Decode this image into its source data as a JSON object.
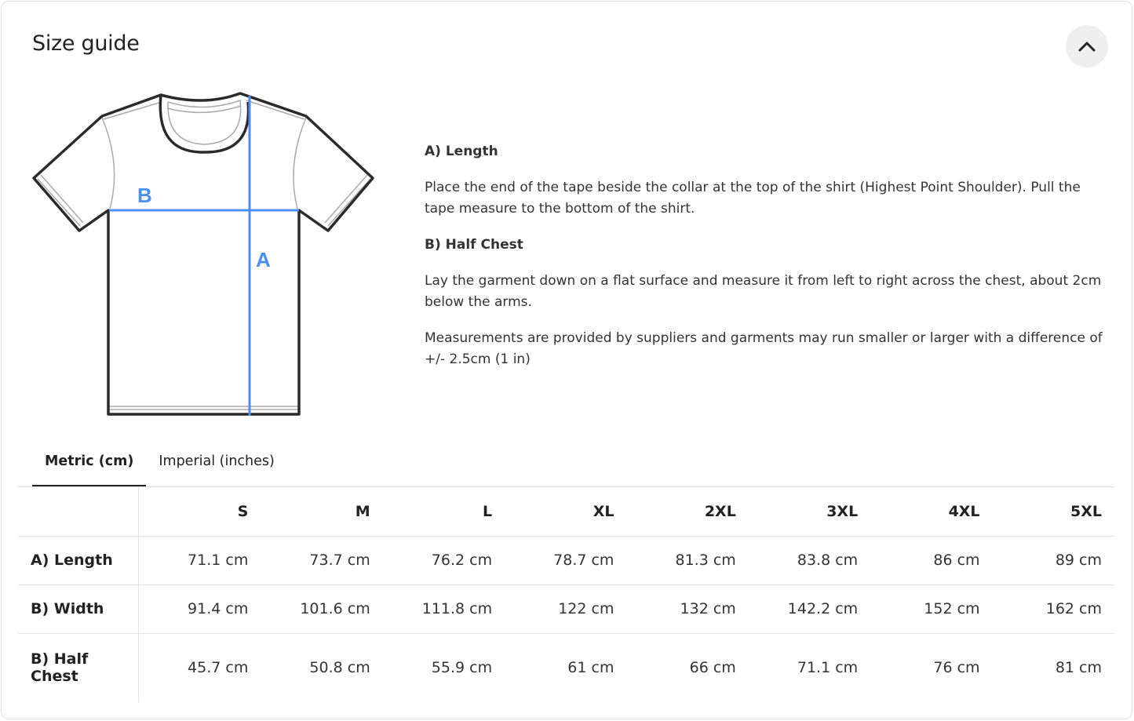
{
  "title": "Size guide",
  "icons": {
    "collapse": "chevron-up-icon"
  },
  "colors": {
    "measure_line": "#4a8ff0"
  },
  "diagram": {
    "label_a": "A",
    "label_b": "B"
  },
  "description": {
    "length_heading": "A) Length",
    "length_text": "Place the end of the tape beside the collar at the top of the shirt (Highest Point Shoulder). Pull the tape measure to the bottom of the shirt.",
    "chest_heading": "B) Half Chest",
    "chest_text": "Lay the garment down on a flat surface and measure it from left to right across the chest, about 2cm below the arms.",
    "note": "Measurements are provided by suppliers and garments may run smaller or larger with a difference of +/- 2.5cm (1 in)"
  },
  "tabs": [
    {
      "label": "Metric (cm)",
      "active": true
    },
    {
      "label": "Imperial (inches)",
      "active": false
    }
  ],
  "table": {
    "sizes": [
      "S",
      "M",
      "L",
      "XL",
      "2XL",
      "3XL",
      "4XL",
      "5XL"
    ],
    "rows": [
      {
        "label": "A) Length",
        "values": [
          "71.1 cm",
          "73.7 cm",
          "76.2 cm",
          "78.7 cm",
          "81.3 cm",
          "83.8 cm",
          "86 cm",
          "89 cm"
        ]
      },
      {
        "label": "B) Width",
        "values": [
          "91.4 cm",
          "101.6 cm",
          "111.8 cm",
          "122 cm",
          "132 cm",
          "142.2 cm",
          "152 cm",
          "162 cm"
        ]
      },
      {
        "label": "B) Half Chest",
        "values": [
          "45.7 cm",
          "50.8 cm",
          "55.9 cm",
          "61 cm",
          "66 cm",
          "71.1 cm",
          "76 cm",
          "81 cm"
        ]
      }
    ]
  }
}
